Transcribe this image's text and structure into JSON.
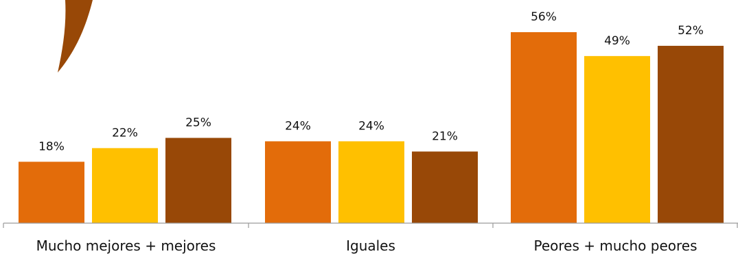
{
  "chart_data": {
    "type": "bar",
    "categories": [
      "Mucho mejores + mejores",
      "Iguales",
      "Peores + mucho peores"
    ],
    "series": [
      {
        "values": [
          18,
          24,
          56
        ],
        "labels": [
          "18%",
          "24%",
          "56%"
        ],
        "color": "#e36c0a"
      },
      {
        "values": [
          22,
          24,
          49
        ],
        "labels": [
          "22%",
          "24%",
          "49%"
        ],
        "color": "#ffc000"
      },
      {
        "values": [
          25,
          21,
          52
        ],
        "labels": [
          "25%",
          "21%",
          "52%"
        ],
        "color": "#984807"
      }
    ],
    "ylim": [
      0,
      56
    ],
    "grid": false,
    "legend": "none"
  },
  "decoration": {
    "color": "#984807"
  }
}
